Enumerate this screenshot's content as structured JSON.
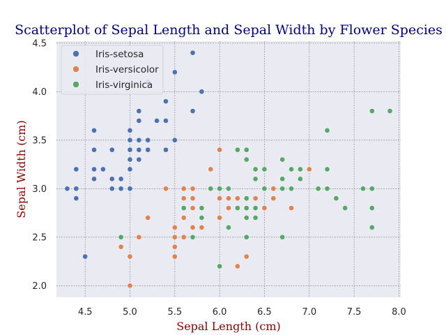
{
  "chart_data": {
    "type": "scatter",
    "title": "Scatterplot of Sepal Length and Sepal Width by Flower Species",
    "xlabel": "Sepal Length (cm)",
    "ylabel": "Sepal Width (cm)",
    "xlim": [
      4.18,
      8.02
    ],
    "ylim": [
      1.88,
      4.52
    ],
    "xticks": [
      4.5,
      5.0,
      5.5,
      6.0,
      6.5,
      7.0,
      7.5,
      8.0
    ],
    "yticks": [
      2.0,
      2.5,
      3.0,
      3.5,
      4.0,
      4.5
    ],
    "grid": true,
    "legend_position": "top-left",
    "background": "#eaeaf2",
    "series": [
      {
        "name": "Iris-setosa",
        "color": "#4c72b0",
        "points": [
          [
            5.1,
            3.5
          ],
          [
            4.9,
            3.0
          ],
          [
            4.7,
            3.2
          ],
          [
            4.6,
            3.1
          ],
          [
            5.0,
            3.6
          ],
          [
            5.4,
            3.9
          ],
          [
            4.6,
            3.4
          ],
          [
            5.0,
            3.4
          ],
          [
            4.4,
            2.9
          ],
          [
            4.9,
            3.1
          ],
          [
            5.4,
            3.7
          ],
          [
            4.8,
            3.4
          ],
          [
            4.8,
            3.0
          ],
          [
            4.3,
            3.0
          ],
          [
            5.8,
            4.0
          ],
          [
            5.7,
            4.4
          ],
          [
            5.4,
            3.9
          ],
          [
            5.1,
            3.5
          ],
          [
            5.7,
            3.8
          ],
          [
            5.1,
            3.8
          ],
          [
            5.4,
            3.4
          ],
          [
            5.1,
            3.7
          ],
          [
            4.6,
            3.6
          ],
          [
            5.1,
            3.3
          ],
          [
            4.8,
            3.4
          ],
          [
            5.0,
            3.0
          ],
          [
            5.0,
            3.4
          ],
          [
            5.2,
            3.5
          ],
          [
            5.2,
            3.4
          ],
          [
            4.7,
            3.2
          ],
          [
            4.8,
            3.1
          ],
          [
            5.4,
            3.4
          ],
          [
            5.2,
            4.1
          ],
          [
            5.5,
            4.2
          ],
          [
            4.9,
            3.1
          ],
          [
            5.0,
            3.2
          ],
          [
            5.5,
            3.5
          ],
          [
            4.9,
            3.1
          ],
          [
            4.4,
            3.0
          ],
          [
            5.1,
            3.4
          ],
          [
            5.0,
            3.5
          ],
          [
            4.5,
            2.3
          ],
          [
            4.4,
            3.2
          ],
          [
            5.0,
            3.5
          ],
          [
            5.1,
            3.8
          ],
          [
            4.8,
            3.0
          ],
          [
            5.1,
            3.8
          ],
          [
            4.6,
            3.2
          ],
          [
            5.3,
            3.7
          ],
          [
            5.0,
            3.3
          ]
        ]
      },
      {
        "name": "Iris-versicolor",
        "color": "#dd8452",
        "points": [
          [
            7.0,
            3.2
          ],
          [
            6.4,
            3.2
          ],
          [
            6.9,
            3.1
          ],
          [
            5.5,
            2.3
          ],
          [
            6.5,
            2.8
          ],
          [
            5.7,
            2.8
          ],
          [
            6.3,
            3.3
          ],
          [
            4.9,
            2.4
          ],
          [
            6.6,
            2.9
          ],
          [
            5.2,
            2.7
          ],
          [
            5.0,
            2.0
          ],
          [
            5.9,
            3.0
          ],
          [
            6.0,
            2.2
          ],
          [
            6.1,
            2.9
          ],
          [
            5.6,
            2.9
          ],
          [
            6.7,
            3.1
          ],
          [
            5.6,
            3.0
          ],
          [
            5.8,
            2.7
          ],
          [
            6.2,
            2.2
          ],
          [
            5.6,
            2.5
          ],
          [
            5.9,
            3.2
          ],
          [
            6.1,
            2.8
          ],
          [
            6.3,
            2.5
          ],
          [
            6.1,
            2.8
          ],
          [
            6.4,
            2.9
          ],
          [
            6.6,
            3.0
          ],
          [
            6.8,
            2.8
          ],
          [
            6.7,
            3.0
          ],
          [
            6.0,
            2.9
          ],
          [
            5.7,
            2.6
          ],
          [
            5.5,
            2.4
          ],
          [
            5.5,
            2.4
          ],
          [
            5.8,
            2.7
          ],
          [
            6.0,
            2.7
          ],
          [
            5.4,
            3.0
          ],
          [
            6.0,
            3.4
          ],
          [
            6.7,
            3.1
          ],
          [
            6.3,
            2.3
          ],
          [
            5.6,
            3.0
          ],
          [
            5.5,
            2.5
          ],
          [
            5.5,
            2.6
          ],
          [
            6.1,
            3.0
          ],
          [
            5.8,
            2.6
          ],
          [
            5.0,
            2.3
          ],
          [
            5.6,
            2.7
          ],
          [
            5.7,
            3.0
          ],
          [
            5.7,
            2.9
          ],
          [
            6.2,
            2.9
          ],
          [
            5.1,
            2.5
          ],
          [
            5.7,
            2.8
          ]
        ]
      },
      {
        "name": "Iris-virginica",
        "color": "#55a868",
        "points": [
          [
            6.3,
            3.3
          ],
          [
            5.8,
            2.7
          ],
          [
            7.1,
            3.0
          ],
          [
            6.3,
            2.9
          ],
          [
            6.5,
            3.0
          ],
          [
            7.6,
            3.0
          ],
          [
            4.9,
            2.5
          ],
          [
            7.3,
            2.9
          ],
          [
            6.7,
            2.5
          ],
          [
            7.2,
            3.6
          ],
          [
            6.5,
            3.2
          ],
          [
            6.4,
            2.7
          ],
          [
            6.8,
            3.0
          ],
          [
            5.7,
            2.5
          ],
          [
            5.8,
            2.8
          ],
          [
            6.4,
            3.2
          ],
          [
            6.5,
            3.0
          ],
          [
            7.7,
            3.8
          ],
          [
            7.7,
            2.6
          ],
          [
            6.0,
            2.2
          ],
          [
            6.9,
            3.2
          ],
          [
            5.6,
            2.8
          ],
          [
            7.7,
            2.8
          ],
          [
            6.3,
            2.7
          ],
          [
            6.7,
            3.3
          ],
          [
            7.2,
            3.2
          ],
          [
            6.2,
            2.8
          ],
          [
            6.1,
            3.0
          ],
          [
            6.4,
            2.8
          ],
          [
            7.2,
            3.0
          ],
          [
            7.4,
            2.8
          ],
          [
            7.9,
            3.8
          ],
          [
            6.4,
            2.8
          ],
          [
            6.3,
            2.8
          ],
          [
            6.1,
            2.6
          ],
          [
            7.7,
            3.0
          ],
          [
            6.3,
            3.4
          ],
          [
            6.4,
            3.1
          ],
          [
            6.0,
            3.0
          ],
          [
            6.9,
            3.1
          ],
          [
            6.7,
            3.1
          ],
          [
            6.9,
            3.1
          ],
          [
            5.8,
            2.7
          ],
          [
            6.8,
            3.2
          ],
          [
            6.7,
            3.3
          ],
          [
            6.7,
            3.0
          ],
          [
            6.3,
            2.5
          ],
          [
            6.5,
            3.0
          ],
          [
            6.2,
            3.4
          ],
          [
            5.9,
            3.0
          ]
        ]
      }
    ]
  }
}
